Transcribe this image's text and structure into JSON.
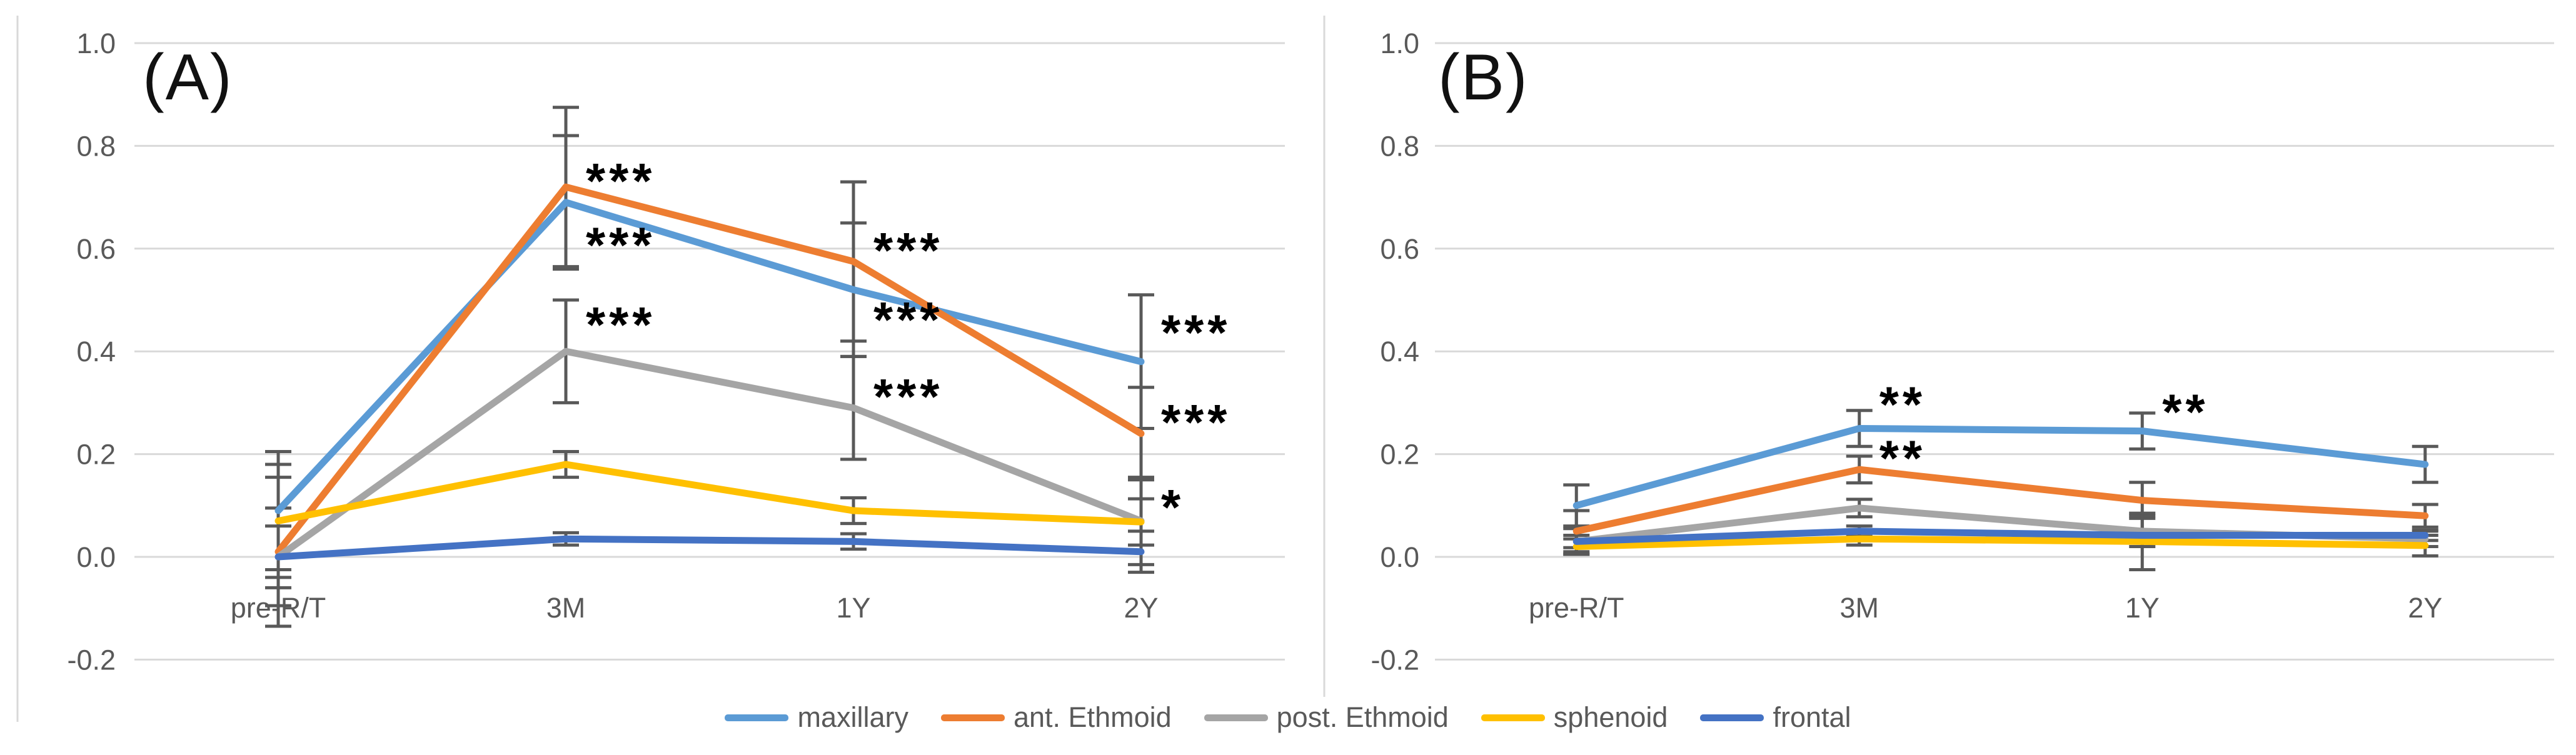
{
  "style_colors": {
    "gridline": "#d9d9d9",
    "axis_line": "#d9d9d9",
    "tick_text": "#595959",
    "error_bar": "#595959",
    "annotation_text": "#000000"
  },
  "chart_data": [
    {
      "type": "line",
      "title": "(A)",
      "categories": [
        "pre-R/T",
        "3M",
        "1Y",
        "2Y"
      ],
      "ylim": [
        -0.2,
        1.0
      ],
      "yticks": [
        {
          "label": "1.0",
          "value": 1.0
        },
        {
          "label": "0.8",
          "value": 0.8
        },
        {
          "label": "0.6",
          "value": 0.6
        },
        {
          "label": "0.4",
          "value": 0.4
        },
        {
          "label": "0.2",
          "value": 0.2
        },
        {
          "label": "0.0",
          "value": 0.0
        },
        {
          "label": "-0.2",
          "value": -0.2
        }
      ],
      "grid": true,
      "legend_position": "bottom",
      "series": [
        {
          "name": "maxillary",
          "color": "#5b9bd5",
          "values": [
            0.09,
            0.69,
            0.52,
            0.38
          ],
          "errors": [
            0.115,
            0.13,
            0.13,
            0.13
          ]
        },
        {
          "name": "ant. Ethmoid",
          "color": "#ed7d31",
          "values": [
            0.01,
            0.72,
            0.575,
            0.24
          ],
          "errors": [
            0.145,
            0.155,
            0.155,
            0.09
          ]
        },
        {
          "name": "post. Ethmoid",
          "color": "#a5a5a5",
          "values": [
            0.0,
            0.4,
            0.29,
            0.07
          ],
          "errors": [
            0.095,
            0.1,
            0.1,
            0.085
          ]
        },
        {
          "name": "sphenoid",
          "color": "#ffc000",
          "values": [
            0.07,
            0.18,
            0.09,
            0.068
          ],
          "errors": [
            0.11,
            0.025,
            0.025,
            0.045
          ]
        },
        {
          "name": "frontal",
          "color": "#4472c4",
          "values": [
            0.0,
            0.035,
            0.03,
            0.01
          ],
          "errors": [
            0.06,
            0.012,
            0.015,
            0.04
          ]
        }
      ],
      "annotations": [
        {
          "category_index": 1,
          "value": 0.735,
          "text": "***"
        },
        {
          "category_index": 1,
          "value": 0.61,
          "text": "***"
        },
        {
          "category_index": 1,
          "value": 0.455,
          "text": "***"
        },
        {
          "category_index": 2,
          "value": 0.6,
          "text": "***"
        },
        {
          "category_index": 2,
          "value": 0.465,
          "text": "***"
        },
        {
          "category_index": 2,
          "value": 0.315,
          "text": "***"
        },
        {
          "category_index": 3,
          "value": 0.44,
          "text": "***"
        },
        {
          "category_index": 3,
          "value": 0.265,
          "text": "***"
        },
        {
          "category_index": 3,
          "value": 0.1,
          "text": "*"
        }
      ]
    },
    {
      "type": "line",
      "title": "(B)",
      "categories": [
        "pre-R/T",
        "3M",
        "1Y",
        "2Y"
      ],
      "ylim": [
        -0.2,
        1.0
      ],
      "yticks": [
        {
          "label": "1.0",
          "value": 1.0
        },
        {
          "label": "0.8",
          "value": 0.8
        },
        {
          "label": "0.6",
          "value": 0.6
        },
        {
          "label": "0.4",
          "value": 0.4
        },
        {
          "label": "0.2",
          "value": 0.2
        },
        {
          "label": "0.0",
          "value": 0.0
        },
        {
          "label": "-0.2",
          "value": -0.2
        }
      ],
      "grid": true,
      "legend_position": "bottom",
      "series": [
        {
          "name": "maxillary",
          "color": "#5b9bd5",
          "values": [
            0.1,
            0.25,
            0.245,
            0.18
          ],
          "errors": [
            0.04,
            0.035,
            0.035,
            0.035
          ]
        },
        {
          "name": "ant. Ethmoid",
          "color": "#ed7d31",
          "values": [
            0.05,
            0.17,
            0.11,
            0.08
          ],
          "errors": [
            0.04,
            0.026,
            0.035,
            0.022
          ]
        },
        {
          "name": "post. Ethmoid",
          "color": "#a5a5a5",
          "values": [
            0.03,
            0.095,
            0.05,
            0.035
          ],
          "errors": [
            0.025,
            0.017,
            0.03,
            0.015
          ]
        },
        {
          "name": "sphenoid",
          "color": "#ffc000",
          "values": [
            0.02,
            0.035,
            0.03,
            0.022
          ],
          "errors": [
            0.015,
            0.012,
            0.055,
            0.02
          ]
        },
        {
          "name": "frontal",
          "color": "#4472c4",
          "values": [
            0.03,
            0.05,
            0.042,
            0.042
          ],
          "errors": [
            0.012,
            0.01,
            0.01,
            0.01
          ]
        }
      ],
      "annotations": [
        {
          "category_index": 1,
          "value": 0.3,
          "text": "**"
        },
        {
          "category_index": 1,
          "value": 0.195,
          "text": "**"
        },
        {
          "category_index": 2,
          "value": 0.285,
          "text": "**"
        }
      ]
    }
  ]
}
